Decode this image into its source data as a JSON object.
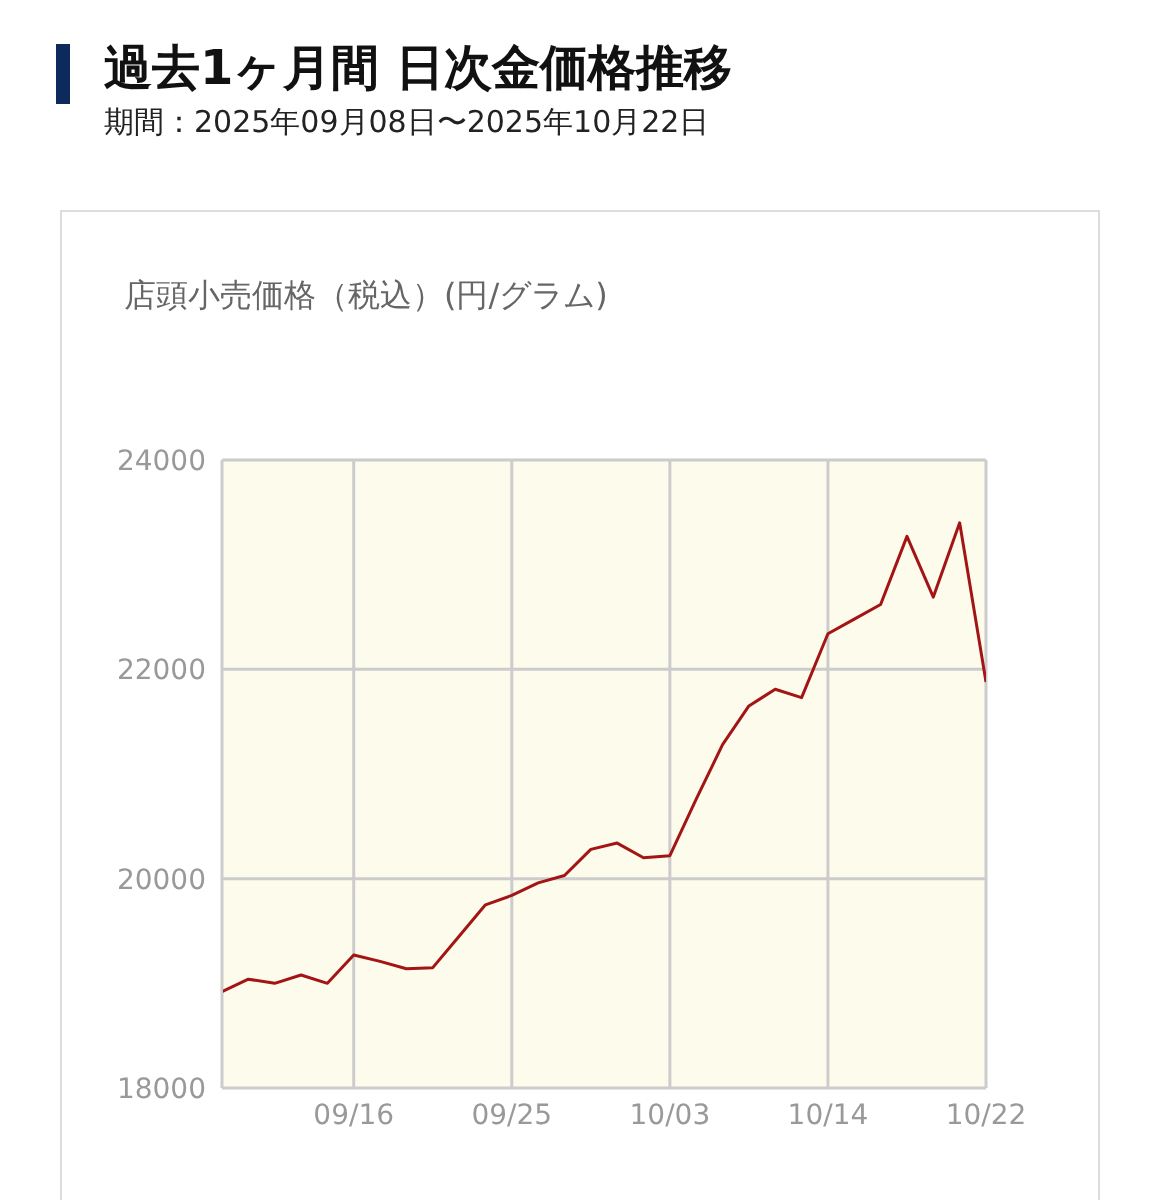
{
  "chart_data": {
    "type": "line",
    "title": "過去1ヶ月間 日次金価格推移",
    "subtitle": "期間：2025年09月08日〜2025年10月22日",
    "ylabel": "店頭小売価格（税込）(円/グラム)",
    "categories": [
      null,
      null,
      null,
      null,
      null,
      "09/16",
      null,
      null,
      null,
      null,
      null,
      "09/25",
      null,
      null,
      null,
      null,
      null,
      "10/03",
      null,
      null,
      null,
      null,
      null,
      "10/14",
      null,
      null,
      null,
      null,
      null,
      "10/22"
    ],
    "series": [
      {
        "color": "#a31515",
        "values": [
          18920,
          19040,
          19000,
          19080,
          19000,
          19270,
          19210,
          19140,
          19150,
          19450,
          19750,
          19840,
          19960,
          20030,
          20280,
          20340,
          20200,
          20220,
          20760,
          21280,
          21650,
          21810,
          21730,
          22340,
          22480,
          22620,
          23270,
          22690,
          23400,
          21880
        ]
      }
    ],
    "ylim": [
      18000,
      24000
    ],
    "yticks": [
      18000,
      20000,
      22000,
      24000
    ],
    "grid": true,
    "legend": false
  }
}
